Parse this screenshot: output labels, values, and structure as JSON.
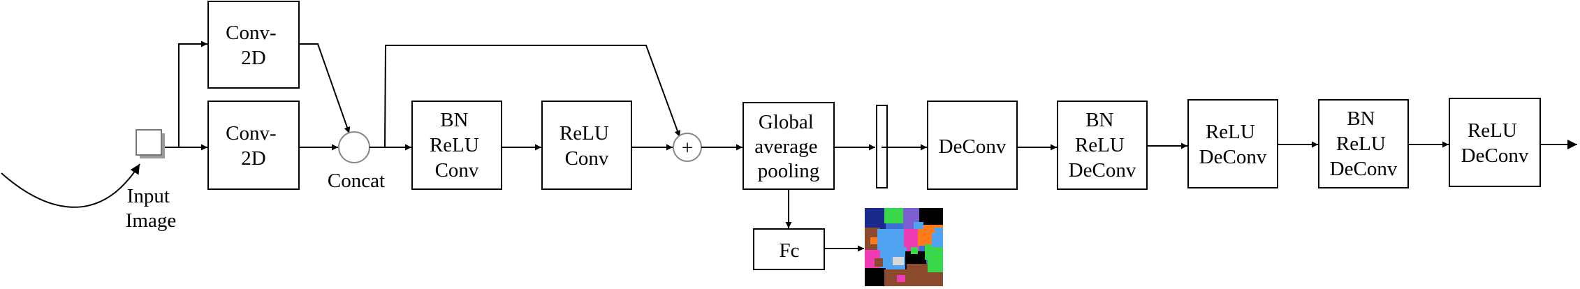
{
  "input": {
    "label_lines": [
      "Input",
      "Image"
    ]
  },
  "branch": {
    "conv_top": [
      "Conv-",
      "2D"
    ],
    "conv_bottom": [
      "Conv-",
      "2D"
    ],
    "concat_label": "Concat"
  },
  "blocks": {
    "bn_relu_conv": [
      "BN",
      "ReLU",
      "Conv"
    ],
    "relu_conv": [
      "ReLU",
      "Conv"
    ],
    "add_symbol": "+",
    "gap": [
      "Global",
      "average",
      "pooling"
    ],
    "fc": "Fc",
    "deconv": "DeConv",
    "bn_relu_deconv_1": [
      "BN",
      "ReLU",
      "DeConv"
    ],
    "relu_deconv_1": [
      "ReLU",
      "DeConv"
    ],
    "bn_relu_deconv_2": [
      "BN",
      "ReLU",
      "DeConv"
    ],
    "relu_deconv_2": [
      "ReLU",
      "DeConv"
    ]
  },
  "colors": {
    "stroke": "#000000",
    "segmap": [
      "#000000",
      "#3b6fd6",
      "#8b4a2b",
      "#f03cb4",
      "#38d84a",
      "#4fa3f0",
      "#ff7a1a",
      "#7b5fd0",
      "#1a2a8c",
      "#d9d9d9"
    ]
  }
}
